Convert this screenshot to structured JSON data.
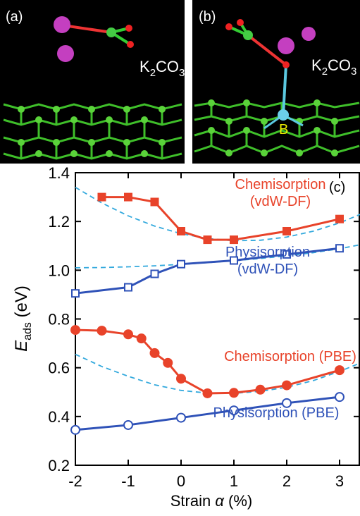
{
  "panels": {
    "a": {
      "label": "(a)",
      "formula": [
        "K",
        "2",
        "CO",
        "3"
      ]
    },
    "b": {
      "label": "(b)",
      "formula": [
        "K",
        "2",
        "CO",
        "3"
      ],
      "atom": "B"
    }
  },
  "chart_data": {
    "type": "line",
    "panel_label": "(c)",
    "x_label": {
      "text": "Strain",
      "symbol": "α",
      "unit": "(%)"
    },
    "y_label": {
      "symbol": "E",
      "subscript": "ads",
      "unit": "(eV)"
    },
    "xlim": [
      -2,
      3.4
    ],
    "xticks": [
      -2,
      -1,
      0,
      1,
      2,
      3
    ],
    "ylim": [
      0.2,
      1.4
    ],
    "yticks": [
      0.2,
      0.4,
      0.6,
      0.8,
      {
        "value": 1.0,
        "label": "1.0"
      },
      1.2,
      1.4
    ],
    "series": [
      {
        "name": "Chemisorption (vdW-DF)",
        "color": "#e8432a",
        "marker": "square",
        "filled": true,
        "x": [
          -1.5,
          -1,
          -0.5,
          0,
          0.5,
          1,
          2,
          3
        ],
        "values": [
          1.3,
          1.3,
          1.28,
          1.16,
          1.125,
          1.125,
          1.16,
          1.21
        ]
      },
      {
        "name": "Physisorption (vdW-DF)",
        "color": "#2f52b8",
        "marker": "square",
        "filled": false,
        "x": [
          -2,
          -1,
          -0.5,
          0,
          1,
          2,
          3
        ],
        "values": [
          0.905,
          0.93,
          0.985,
          1.025,
          1.04,
          1.065,
          1.09
        ]
      },
      {
        "name": "Chemisorption (PBE)",
        "color": "#e8432a",
        "marker": "circle",
        "filled": true,
        "x": [
          -2,
          -1.5,
          -1,
          -0.75,
          -0.5,
          -0.25,
          0,
          0.5,
          1,
          1.5,
          2,
          3
        ],
        "values": [
          0.755,
          0.752,
          0.737,
          0.72,
          0.66,
          0.62,
          0.555,
          0.495,
          0.497,
          0.51,
          0.528,
          0.59
        ]
      },
      {
        "name": "Physisorption (PBE)",
        "color": "#2f52b8",
        "marker": "circle",
        "filled": false,
        "x": [
          -2,
          -1,
          0,
          1,
          2,
          3
        ],
        "values": [
          0.345,
          0.365,
          0.395,
          0.425,
          0.455,
          0.48
        ]
      },
      {
        "color": "#33a9dd",
        "dashed": true,
        "x": [
          -2,
          -1.5,
          -1,
          -0.5,
          0,
          0.5,
          1,
          1.5,
          2,
          2.5,
          3,
          3.4
        ],
        "values": [
          1.34,
          1.276,
          1.223,
          1.181,
          1.15,
          1.13,
          1.121,
          1.123,
          1.136,
          1.16,
          1.194,
          1.23
        ]
      },
      {
        "color": "#33a9dd",
        "dashed": true,
        "x": [
          -2,
          -1.5,
          -1,
          -0.5,
          0,
          0.5,
          1,
          1.5,
          2,
          2.5,
          3,
          3.4
        ],
        "values": [
          1.01,
          1.011,
          1.014,
          1.018,
          1.024,
          1.031,
          1.039,
          1.048,
          1.059,
          1.072,
          1.088,
          1.105
        ]
      },
      {
        "color": "#33a9dd",
        "dashed": true,
        "x": [
          -2,
          -1.5,
          -1,
          -0.5,
          0,
          0.5,
          1,
          1.5,
          2,
          2.5,
          3,
          3.4
        ],
        "values": [
          0.655,
          0.605,
          0.565,
          0.53,
          0.507,
          0.496,
          0.495,
          0.503,
          0.52,
          0.547,
          0.585,
          0.62
        ]
      }
    ]
  }
}
